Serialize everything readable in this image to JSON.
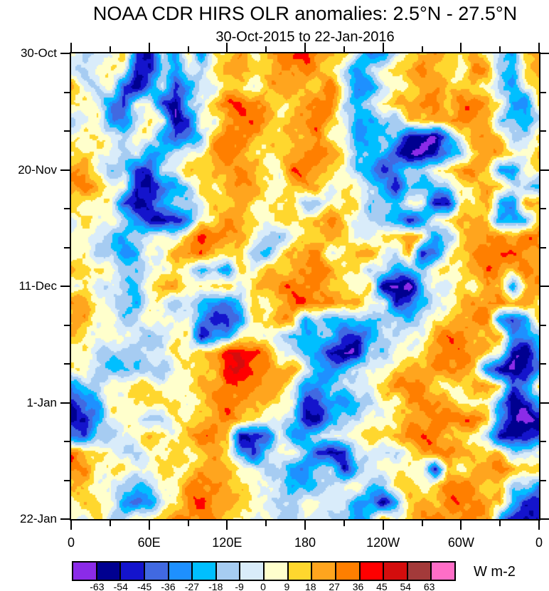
{
  "title": "NOAA CDR HIRS OLR anomalies: 2.5°N - 27.5°N",
  "subtitle": "30-Oct-2015 to 22-Jan-2016",
  "chart_data": {
    "type": "heatmap",
    "title": "NOAA CDR HIRS OLR anomalies: 2.5°N - 27.5°N",
    "subtitle": "30-Oct-2015 to 22-Jan-2016",
    "xlabel": "",
    "ylabel": "",
    "x_axis": {
      "kind": "longitude",
      "range_deg": [
        0,
        360
      ],
      "major": [
        {
          "deg": 0,
          "label": "0"
        },
        {
          "deg": 60,
          "label": "60E"
        },
        {
          "deg": 120,
          "label": "120E"
        },
        {
          "deg": 180,
          "label": "180"
        },
        {
          "deg": 240,
          "label": "120W"
        },
        {
          "deg": 300,
          "label": "60W"
        },
        {
          "deg": 360,
          "label": "0"
        }
      ],
      "minor_deg": [
        30,
        90,
        150,
        210,
        270,
        330
      ]
    },
    "y_axis": {
      "kind": "time",
      "start": "30-Oct-2015",
      "end": "22-Jan-2016",
      "range_days": [
        0,
        84
      ],
      "major": [
        {
          "day": 0,
          "label": "30-Oct"
        },
        {
          "day": 21,
          "label": "20-Nov"
        },
        {
          "day": 42,
          "label": "11-Dec"
        },
        {
          "day": 63,
          "label": "1-Jan"
        },
        {
          "day": 84,
          "label": "22-Jan"
        }
      ],
      "minor_days": [
        7,
        14,
        28,
        35,
        49,
        56,
        70,
        77
      ]
    },
    "colorbar": {
      "units": "W m-2",
      "boundaries": [
        -63,
        -54,
        -45,
        -36,
        -27,
        -18,
        -9,
        0,
        9,
        18,
        27,
        36,
        45,
        54,
        63
      ],
      "colors": [
        "#8B2BE8",
        "#000090",
        "#1414CC",
        "#4169E1",
        "#1E90FF",
        "#00BFFF",
        "#A6CCF2",
        "#D9ECFA",
        "#FFFFCC",
        "#FFD72E",
        "#FFA51E",
        "#FF7F00",
        "#FF0000",
        "#D40D0D",
        "#A33A3A",
        "#FF6EC7"
      ]
    },
    "grid": {
      "lon_start_deg": 0,
      "lon_step_deg": 10,
      "day_start": 0,
      "day_step": 3,
      "units": "W m-2",
      "values": [
        [
          -4,
          -13,
          -4,
          4,
          13,
          -49,
          -58,
          -4,
          -31,
          4,
          -31,
          13,
          13,
          22,
          4,
          22,
          31,
          31,
          40,
          31,
          22,
          13,
          -13,
          -31,
          -31,
          -4,
          4,
          22,
          31,
          13,
          4,
          22,
          13,
          -13,
          -31,
          13,
          31
        ],
        [
          -4,
          -13,
          4,
          4,
          4,
          -58,
          -49,
          -13,
          -31,
          4,
          -13,
          13,
          22,
          22,
          13,
          13,
          22,
          31,
          31,
          22,
          13,
          -13,
          -31,
          -13,
          4,
          13,
          22,
          31,
          22,
          13,
          4,
          31,
          22,
          -13,
          -31,
          13,
          22
        ],
        [
          22,
          4,
          -13,
          4,
          -49,
          -58,
          -31,
          -13,
          -49,
          -31,
          4,
          -13,
          13,
          13,
          4,
          13,
          22,
          22,
          22,
          13,
          31,
          4,
          -31,
          -31,
          -13,
          4,
          13,
          22,
          22,
          13,
          22,
          13,
          4,
          -22,
          -22,
          4,
          13
        ],
        [
          13,
          4,
          -4,
          -31,
          -49,
          4,
          4,
          -49,
          -58,
          -13,
          -13,
          22,
          31,
          40,
          31,
          22,
          13,
          13,
          22,
          31,
          31,
          -13,
          -22,
          -13,
          13,
          22,
          22,
          31,
          31,
          13,
          31,
          31,
          22,
          13,
          -31,
          -31,
          13
        ],
        [
          -13,
          -4,
          4,
          -31,
          -31,
          -13,
          4,
          4,
          -58,
          -49,
          4,
          -4,
          31,
          31,
          31,
          22,
          13,
          22,
          22,
          31,
          22,
          4,
          -31,
          -31,
          -13,
          -13,
          13,
          13,
          22,
          31,
          31,
          22,
          22,
          -13,
          -13,
          -31,
          -13
        ],
        [
          4,
          13,
          13,
          -4,
          -13,
          4,
          4,
          -31,
          -49,
          -31,
          -13,
          22,
          31,
          31,
          22,
          13,
          4,
          22,
          22,
          31,
          4,
          4,
          -31,
          -22,
          -22,
          -22,
          -58,
          -58,
          -67,
          -31,
          4,
          31,
          22,
          13,
          -13,
          -13,
          13
        ],
        [
          13,
          13,
          4,
          -4,
          -13,
          4,
          -31,
          -31,
          -4,
          4,
          4,
          22,
          31,
          31,
          13,
          4,
          13,
          22,
          31,
          31,
          22,
          13,
          -13,
          -22,
          -22,
          -49,
          -58,
          -67,
          -58,
          -31,
          -13,
          13,
          22,
          22,
          13,
          4,
          13
        ],
        [
          22,
          22,
          4,
          -13,
          -13,
          -49,
          -49,
          -4,
          -4,
          13,
          13,
          22,
          22,
          31,
          22,
          13,
          4,
          31,
          31,
          22,
          13,
          4,
          -22,
          -22,
          -49,
          -31,
          -13,
          -13,
          4,
          13,
          22,
          31,
          22,
          -31,
          -31,
          4,
          13
        ],
        [
          22,
          31,
          22,
          4,
          4,
          -58,
          -58,
          -31,
          -31,
          -13,
          13,
          13,
          22,
          22,
          22,
          13,
          4,
          13,
          22,
          22,
          4,
          4,
          4,
          -13,
          -22,
          -58,
          -22,
          -22,
          -13,
          -13,
          4,
          13,
          22,
          22,
          -13,
          -13,
          -22
        ],
        [
          13,
          13,
          4,
          4,
          -49,
          -58,
          -49,
          -31,
          -13,
          -13,
          4,
          13,
          13,
          22,
          13,
          4,
          4,
          13,
          -13,
          -13,
          4,
          13,
          13,
          -13,
          -22,
          -22,
          4,
          4,
          -58,
          -58,
          13,
          13,
          22,
          -31,
          -31,
          22,
          22
        ],
        [
          -4,
          13,
          4,
          4,
          -13,
          -31,
          -49,
          -58,
          -58,
          -31,
          4,
          13,
          22,
          22,
          13,
          4,
          13,
          13,
          13,
          22,
          31,
          4,
          4,
          -13,
          -13,
          -31,
          -49,
          -31,
          4,
          4,
          22,
          22,
          13,
          -31,
          -31,
          -13,
          13
        ],
        [
          4,
          4,
          -13,
          -13,
          -22,
          -13,
          -4,
          4,
          4,
          13,
          40,
          31,
          31,
          22,
          4,
          -13,
          -13,
          4,
          4,
          13,
          22,
          22,
          -13,
          -4,
          13,
          22,
          22,
          13,
          -31,
          -13,
          13,
          13,
          31,
          31,
          22,
          31,
          31
        ],
        [
          4,
          4,
          -13,
          -13,
          -31,
          -31,
          4,
          4,
          22,
          31,
          31,
          22,
          13,
          13,
          -22,
          -22,
          4,
          22,
          22,
          31,
          4,
          4,
          22,
          22,
          4,
          -13,
          22,
          -58,
          -31,
          4,
          13,
          31,
          31,
          40,
          31,
          22,
          22
        ],
        [
          22,
          22,
          4,
          4,
          -13,
          -13,
          -4,
          -4,
          13,
          4,
          -22,
          -22,
          -31,
          13,
          4,
          13,
          13,
          22,
          31,
          31,
          22,
          13,
          13,
          -13,
          -13,
          -22,
          -22,
          -13,
          4,
          13,
          13,
          22,
          31,
          22,
          22,
          31,
          22
        ],
        [
          4,
          4,
          -4,
          -4,
          -13,
          -13,
          4,
          22,
          22,
          4,
          4,
          13,
          13,
          4,
          13,
          22,
          31,
          31,
          31,
          22,
          13,
          13,
          4,
          13,
          -58,
          -67,
          -67,
          -22,
          -4,
          -4,
          13,
          4,
          22,
          22,
          -31,
          22,
          22
        ],
        [
          22,
          22,
          4,
          4,
          -13,
          -31,
          4,
          4,
          -13,
          -13,
          -22,
          -31,
          -31,
          -22,
          13,
          4,
          22,
          31,
          31,
          31,
          31,
          22,
          13,
          4,
          4,
          -49,
          -49,
          -22,
          -4,
          4,
          13,
          22,
          31,
          31,
          22,
          22,
          13
        ],
        [
          22,
          22,
          4,
          4,
          -13,
          -13,
          4,
          4,
          -4,
          4,
          -31,
          -49,
          -49,
          -31,
          4,
          13,
          22,
          22,
          -31,
          -13,
          -22,
          -22,
          -13,
          -22,
          -13,
          -13,
          -22,
          -13,
          13,
          13,
          22,
          31,
          31,
          -31,
          -49,
          -31,
          13
        ],
        [
          13,
          13,
          4,
          4,
          -4,
          -4,
          -13,
          -13,
          4,
          4,
          -49,
          -31,
          -31,
          4,
          13,
          4,
          -13,
          -22,
          -22,
          -13,
          -22,
          -49,
          -49,
          -22,
          -13,
          -13,
          4,
          4,
          22,
          31,
          31,
          22,
          22,
          13,
          -31,
          -31,
          -13
        ],
        [
          4,
          4,
          -13,
          -13,
          -13,
          -13,
          -4,
          -4,
          13,
          4,
          13,
          22,
          40,
          49,
          40,
          31,
          4,
          -4,
          -22,
          -31,
          -58,
          -67,
          -58,
          -13,
          -13,
          4,
          4,
          13,
          22,
          31,
          31,
          22,
          13,
          4,
          -58,
          -58,
          -31
        ],
        [
          4,
          4,
          -13,
          -13,
          -22,
          -22,
          -13,
          -13,
          4,
          4,
          13,
          22,
          49,
          40,
          31,
          31,
          22,
          22,
          -4,
          -22,
          -31,
          -22,
          -13,
          4,
          4,
          13,
          13,
          22,
          31,
          31,
          22,
          13,
          -31,
          -58,
          -67,
          -58,
          -31
        ],
        [
          -31,
          -13,
          -13,
          4,
          4,
          13,
          13,
          4,
          4,
          13,
          22,
          22,
          31,
          31,
          31,
          22,
          22,
          4,
          -31,
          -31,
          -13,
          -13,
          -4,
          -4,
          13,
          31,
          31,
          31,
          13,
          4,
          13,
          22,
          22,
          13,
          -49,
          -31,
          13
        ],
        [
          -49,
          -31,
          -31,
          4,
          4,
          13,
          13,
          4,
          13,
          4,
          13,
          22,
          31,
          31,
          22,
          13,
          4,
          4,
          -49,
          -49,
          -31,
          -31,
          -13,
          -13,
          4,
          4,
          31,
          31,
          22,
          22,
          13,
          4,
          4,
          -31,
          -58,
          -49,
          -31
        ],
        [
          -58,
          -58,
          -31,
          4,
          4,
          4,
          -13,
          -13,
          13,
          4,
          13,
          22,
          31,
          22,
          13,
          4,
          4,
          -13,
          -58,
          -58,
          -31,
          -13,
          -13,
          4,
          4,
          13,
          22,
          22,
          31,
          31,
          31,
          31,
          22,
          -31,
          -58,
          -67,
          -58
        ],
        [
          -31,
          -49,
          -13,
          -13,
          4,
          4,
          13,
          13,
          4,
          22,
          31,
          31,
          22,
          -58,
          -58,
          -49,
          4,
          -31,
          -31,
          -13,
          4,
          4,
          4,
          13,
          13,
          22,
          31,
          31,
          31,
          22,
          13,
          4,
          -13,
          -49,
          -58,
          -58,
          -49
        ],
        [
          31,
          22,
          13,
          4,
          -13,
          -13,
          4,
          4,
          13,
          4,
          22,
          22,
          13,
          -31,
          -49,
          -13,
          -4,
          4,
          -13,
          -49,
          -58,
          -49,
          -4,
          4,
          -13,
          -13,
          4,
          22,
          31,
          31,
          22,
          22,
          13,
          13,
          -13,
          -13,
          4
        ],
        [
          31,
          31,
          4,
          4,
          13,
          4,
          4,
          13,
          4,
          13,
          22,
          22,
          13,
          13,
          4,
          -13,
          -13,
          -31,
          -31,
          -13,
          -13,
          -58,
          -13,
          -4,
          4,
          4,
          13,
          4,
          -58,
          13,
          4,
          22,
          22,
          31,
          22,
          22,
          13
        ],
        [
          13,
          13,
          4,
          4,
          -13,
          -22,
          -13,
          4,
          4,
          22,
          31,
          31,
          22,
          13,
          4,
          4,
          -4,
          -31,
          -31,
          -13,
          -13,
          4,
          4,
          -13,
          -13,
          13,
          13,
          4,
          13,
          31,
          31,
          22,
          22,
          13,
          -13,
          -13,
          -31
        ],
        [
          4,
          13,
          13,
          4,
          -31,
          -49,
          -31,
          4,
          4,
          31,
          40,
          31,
          22,
          13,
          4,
          4,
          -13,
          -13,
          4,
          4,
          4,
          -13,
          -31,
          -31,
          -58,
          -31,
          13,
          22,
          22,
          31,
          31,
          31,
          22,
          22,
          -31,
          -49,
          -49
        ],
        [
          4,
          4,
          13,
          -13,
          -13,
          13,
          4,
          13,
          31,
          31,
          31,
          22,
          13,
          4,
          4,
          -4,
          -13,
          -13,
          4,
          -4,
          -13,
          -13,
          -31,
          -13,
          13,
          4,
          13,
          31,
          31,
          22,
          31,
          31,
          22,
          -31,
          -49,
          -58,
          -49
        ]
      ]
    }
  }
}
